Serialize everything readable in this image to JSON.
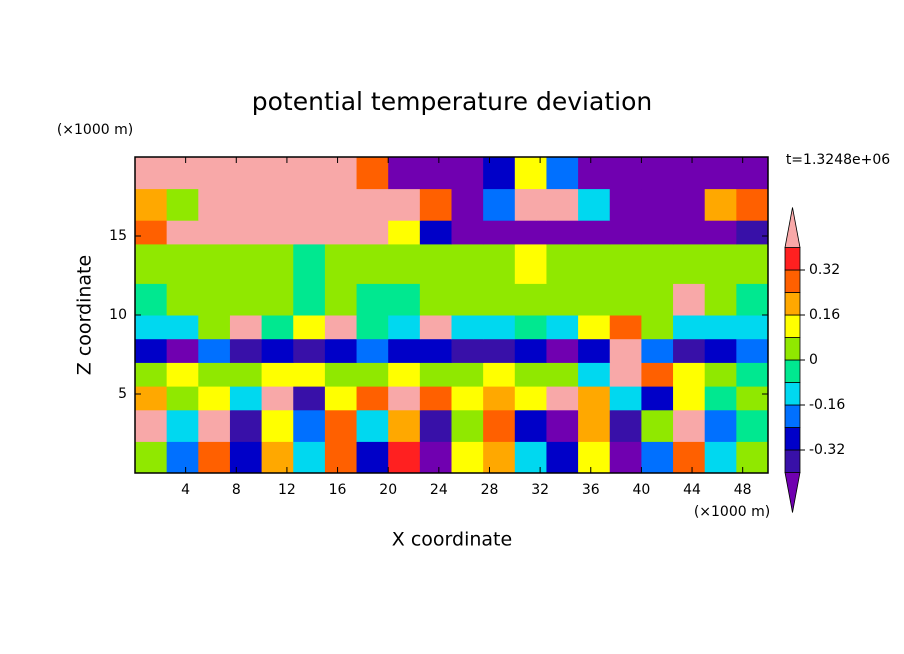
{
  "chart_data": {
    "type": "contour",
    "title": "potential temperature deviation",
    "x_label": "X coordinate",
    "y_label": "Z coordinate",
    "x_unit": "(×1000 m)",
    "y_unit": "(×1000 m)",
    "annotation": "t=1.3248e+06",
    "xlim": [
      0,
      50
    ],
    "ylim": [
      0,
      20
    ],
    "xticks": [
      4,
      8,
      12,
      16,
      20,
      24,
      28,
      32,
      36,
      40,
      44,
      48
    ],
    "yticks": [
      5,
      10,
      15
    ],
    "xbins": [
      0,
      2.5,
      5,
      7.5,
      10,
      12.5,
      15,
      17.5,
      20,
      22.5,
      25,
      27.5,
      30,
      32.5,
      35,
      37.5,
      40,
      42.5,
      45,
      47.5,
      50
    ],
    "ybins": [
      0,
      2,
      4,
      5.5,
      7,
      8.5,
      10,
      12,
      14.5,
      16,
      18,
      20
    ],
    "z": [
      [
        0.05,
        -0.2,
        0.3,
        -0.3,
        0.2,
        -0.1,
        0.25,
        -0.3,
        0.35,
        -0.45,
        0.1,
        0.2,
        -0.1,
        -0.3,
        0.15,
        -0.45,
        -0.2,
        0.3,
        -0.1,
        0.05
      ],
      [
        0.45,
        -0.1,
        0.42,
        -0.35,
        0.1,
        -0.2,
        0.3,
        -0.1,
        0.2,
        -0.35,
        0.05,
        0.3,
        -0.3,
        -0.45,
        0.2,
        -0.4,
        0.05,
        0.45,
        -0.2,
        -0.05
      ],
      [
        0.2,
        0.0,
        0.1,
        -0.1,
        0.42,
        -0.4,
        0.1,
        0.3,
        0.45,
        0.25,
        0.1,
        0.2,
        0.15,
        0.42,
        0.2,
        -0.1,
        -0.3,
        0.1,
        -0.05,
        0.05
      ],
      [
        0.05,
        0.1,
        0.0,
        0.05,
        0.1,
        0.15,
        0.05,
        0.0,
        0.1,
        0.05,
        0.0,
        0.1,
        0.05,
        0.0,
        -0.1,
        0.45,
        0.3,
        0.1,
        0.0,
        -0.05
      ],
      [
        -0.3,
        -0.45,
        -0.2,
        -0.35,
        -0.3,
        -0.4,
        -0.3,
        -0.2,
        -0.3,
        -0.25,
        -0.35,
        -0.4,
        -0.3,
        -0.45,
        -0.3,
        0.45,
        -0.2,
        -0.35,
        -0.3,
        -0.2
      ],
      [
        -0.1,
        -0.12,
        0.0,
        0.42,
        -0.05,
        0.1,
        0.45,
        -0.05,
        -0.1,
        0.45,
        -0.1,
        -0.12,
        -0.05,
        -0.1,
        0.1,
        0.3,
        0.0,
        -0.1,
        -0.12,
        -0.1
      ],
      [
        -0.05,
        0.0,
        0.02,
        0.05,
        0.0,
        -0.03,
        0.03,
        -0.02,
        -0.05,
        0.0,
        0.02,
        0.05,
        0.06,
        0.02,
        0.0,
        0.03,
        0.05,
        0.42,
        0.02,
        -0.05
      ],
      [
        0.02,
        0.05,
        0.03,
        0.02,
        0.0,
        -0.02,
        0.03,
        0.0,
        0.05,
        0.02,
        0.04,
        0.05,
        0.1,
        0.05,
        0.03,
        0.02,
        0.05,
        0.04,
        0.02,
        0.0
      ],
      [
        0.3,
        0.45,
        0.45,
        0.45,
        0.45,
        0.45,
        0.45,
        0.42,
        0.1,
        -0.3,
        -0.45,
        -0.45,
        -0.45,
        -0.45,
        -0.45,
        -0.45,
        -0.45,
        -0.45,
        -0.45,
        -0.35
      ],
      [
        0.2,
        0.0,
        0.45,
        0.45,
        0.45,
        0.45,
        0.45,
        0.45,
        0.45,
        0.3,
        -0.45,
        -0.2,
        0.45,
        0.45,
        -0.1,
        -0.45,
        -0.45,
        -0.45,
        0.2,
        0.3
      ],
      [
        0.45,
        0.45,
        0.45,
        0.45,
        0.45,
        0.45,
        0.45,
        0.3,
        -0.45,
        -0.45,
        -0.45,
        -0.3,
        0.1,
        -0.2,
        -0.45,
        -0.45,
        -0.45,
        -0.45,
        -0.45,
        -0.45
      ]
    ],
    "levels": [
      -0.4,
      -0.32,
      -0.24,
      -0.16,
      -0.08,
      0,
      0.08,
      0.16,
      0.24,
      0.32,
      0.4
    ],
    "colors": [
      "#7000b0",
      "#3810a8",
      "#0000c8",
      "#0070ff",
      "#00d8f0",
      "#00e890",
      "#90e800",
      "#ffff00",
      "#ffa800",
      "#ff6000",
      "#ff2020",
      "#f8a8a8"
    ],
    "colorbar_ticks": [
      -0.32,
      -0.16,
      0,
      0.16,
      0.32
    ]
  }
}
